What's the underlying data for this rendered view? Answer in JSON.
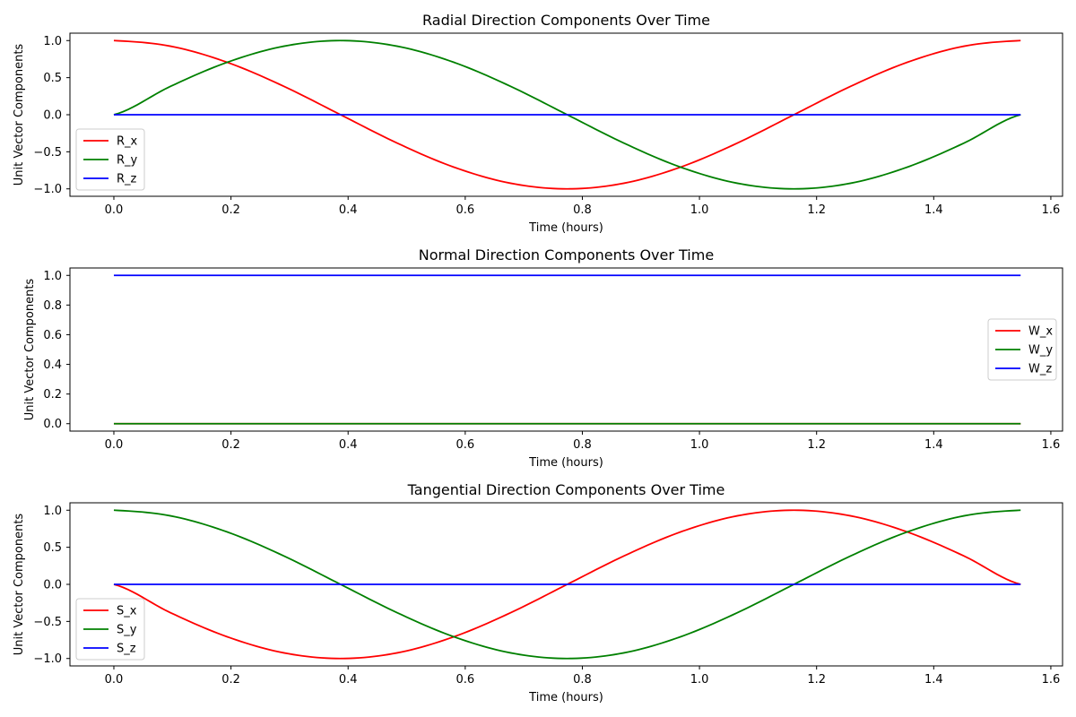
{
  "chart_data": [
    {
      "type": "line",
      "title": "Radial Direction Components Over Time",
      "xlabel": "Time (hours)",
      "ylabel": "Unit Vector Components",
      "xlim": [
        -0.075,
        1.62
      ],
      "ylim": [
        -1.1,
        1.1
      ],
      "xticks": [
        0.0,
        0.2,
        0.4,
        0.6,
        0.8,
        1.0,
        1.2,
        1.4,
        1.6
      ],
      "xtick_labels": [
        "0.0",
        "0.2",
        "0.4",
        "0.6",
        "0.8",
        "1.0",
        "1.2",
        "1.4",
        "1.6"
      ],
      "yticks": [
        -1.0,
        -0.5,
        0.0,
        0.5,
        1.0
      ],
      "ytick_labels": [
        "−1.0",
        "−0.5",
        "0.0",
        "0.5",
        "1.0"
      ],
      "grid": false,
      "legend_position": "lower-left",
      "x": [
        0,
        0.0968,
        0.1935,
        0.2903,
        0.3871,
        0.4839,
        0.5806,
        0.6774,
        0.7742,
        0.871,
        0.9677,
        1.0645,
        1.1613,
        1.2581,
        1.3548,
        1.4516,
        1.5484
      ],
      "series": [
        {
          "name": "R_x",
          "color": "#ff0000",
          "values": [
            1.0,
            0.924,
            0.707,
            0.383,
            0.0,
            -0.383,
            -0.707,
            -0.924,
            -1.0,
            -0.924,
            -0.707,
            -0.383,
            0.0,
            0.383,
            0.707,
            0.924,
            1.0
          ]
        },
        {
          "name": "R_y",
          "color": "#008000",
          "values": [
            0.0,
            0.383,
            0.707,
            0.924,
            1.0,
            0.924,
            0.707,
            0.383,
            0.0,
            -0.383,
            -0.707,
            -0.924,
            -1.0,
            -0.924,
            -0.707,
            -0.383,
            0.0
          ]
        },
        {
          "name": "R_z",
          "color": "#0000ff",
          "values": [
            0,
            0,
            0,
            0,
            0,
            0,
            0,
            0,
            0,
            0,
            0,
            0,
            0,
            0,
            0,
            0,
            0
          ]
        }
      ]
    },
    {
      "type": "line",
      "title": "Normal Direction Components Over Time",
      "xlabel": "Time (hours)",
      "ylabel": "Unit Vector Components",
      "xlim": [
        -0.075,
        1.62
      ],
      "ylim": [
        -0.05,
        1.05
      ],
      "xticks": [
        0.0,
        0.2,
        0.4,
        0.6,
        0.8,
        1.0,
        1.2,
        1.4,
        1.6
      ],
      "xtick_labels": [
        "0.0",
        "0.2",
        "0.4",
        "0.6",
        "0.8",
        "1.0",
        "1.2",
        "1.4",
        "1.6"
      ],
      "yticks": [
        0.0,
        0.2,
        0.4,
        0.6,
        0.8,
        1.0
      ],
      "ytick_labels": [
        "0.0",
        "0.2",
        "0.4",
        "0.6",
        "0.8",
        "1.0"
      ],
      "grid": false,
      "legend_position": "center-right",
      "x": [
        0,
        1.5484
      ],
      "series": [
        {
          "name": "W_x",
          "color": "#ff0000",
          "values": [
            0,
            0
          ]
        },
        {
          "name": "W_y",
          "color": "#008000",
          "values": [
            0,
            0
          ]
        },
        {
          "name": "W_z",
          "color": "#0000ff",
          "values": [
            1,
            1
          ]
        }
      ]
    },
    {
      "type": "line",
      "title": "Tangential Direction Components Over Time",
      "xlabel": "Time (hours)",
      "ylabel": "Unit Vector Components",
      "xlim": [
        -0.075,
        1.62
      ],
      "ylim": [
        -1.1,
        1.1
      ],
      "xticks": [
        0.0,
        0.2,
        0.4,
        0.6,
        0.8,
        1.0,
        1.2,
        1.4,
        1.6
      ],
      "xtick_labels": [
        "0.0",
        "0.2",
        "0.4",
        "0.6",
        "0.8",
        "1.0",
        "1.2",
        "1.4",
        "1.6"
      ],
      "yticks": [
        -1.0,
        -0.5,
        0.0,
        0.5,
        1.0
      ],
      "ytick_labels": [
        "−1.0",
        "−0.5",
        "0.0",
        "0.5",
        "1.0"
      ],
      "grid": false,
      "legend_position": "lower-left",
      "x": [
        0,
        0.0968,
        0.1935,
        0.2903,
        0.3871,
        0.4839,
        0.5806,
        0.6774,
        0.7742,
        0.871,
        0.9677,
        1.0645,
        1.1613,
        1.2581,
        1.3548,
        1.4516,
        1.5484
      ],
      "series": [
        {
          "name": "S_x",
          "color": "#ff0000",
          "values": [
            0.0,
            -0.383,
            -0.707,
            -0.924,
            -1.0,
            -0.924,
            -0.707,
            -0.383,
            0.0,
            0.383,
            0.707,
            0.924,
            1.0,
            0.924,
            0.707,
            0.383,
            0.0
          ]
        },
        {
          "name": "S_y",
          "color": "#008000",
          "values": [
            1.0,
            0.924,
            0.707,
            0.383,
            0.0,
            -0.383,
            -0.707,
            -0.924,
            -1.0,
            -0.924,
            -0.707,
            -0.383,
            0.0,
            0.383,
            0.707,
            0.924,
            1.0
          ]
        },
        {
          "name": "S_z",
          "color": "#0000ff",
          "values": [
            0,
            0,
            0,
            0,
            0,
            0,
            0,
            0,
            0,
            0,
            0,
            0,
            0,
            0,
            0,
            0,
            0
          ]
        }
      ]
    }
  ]
}
